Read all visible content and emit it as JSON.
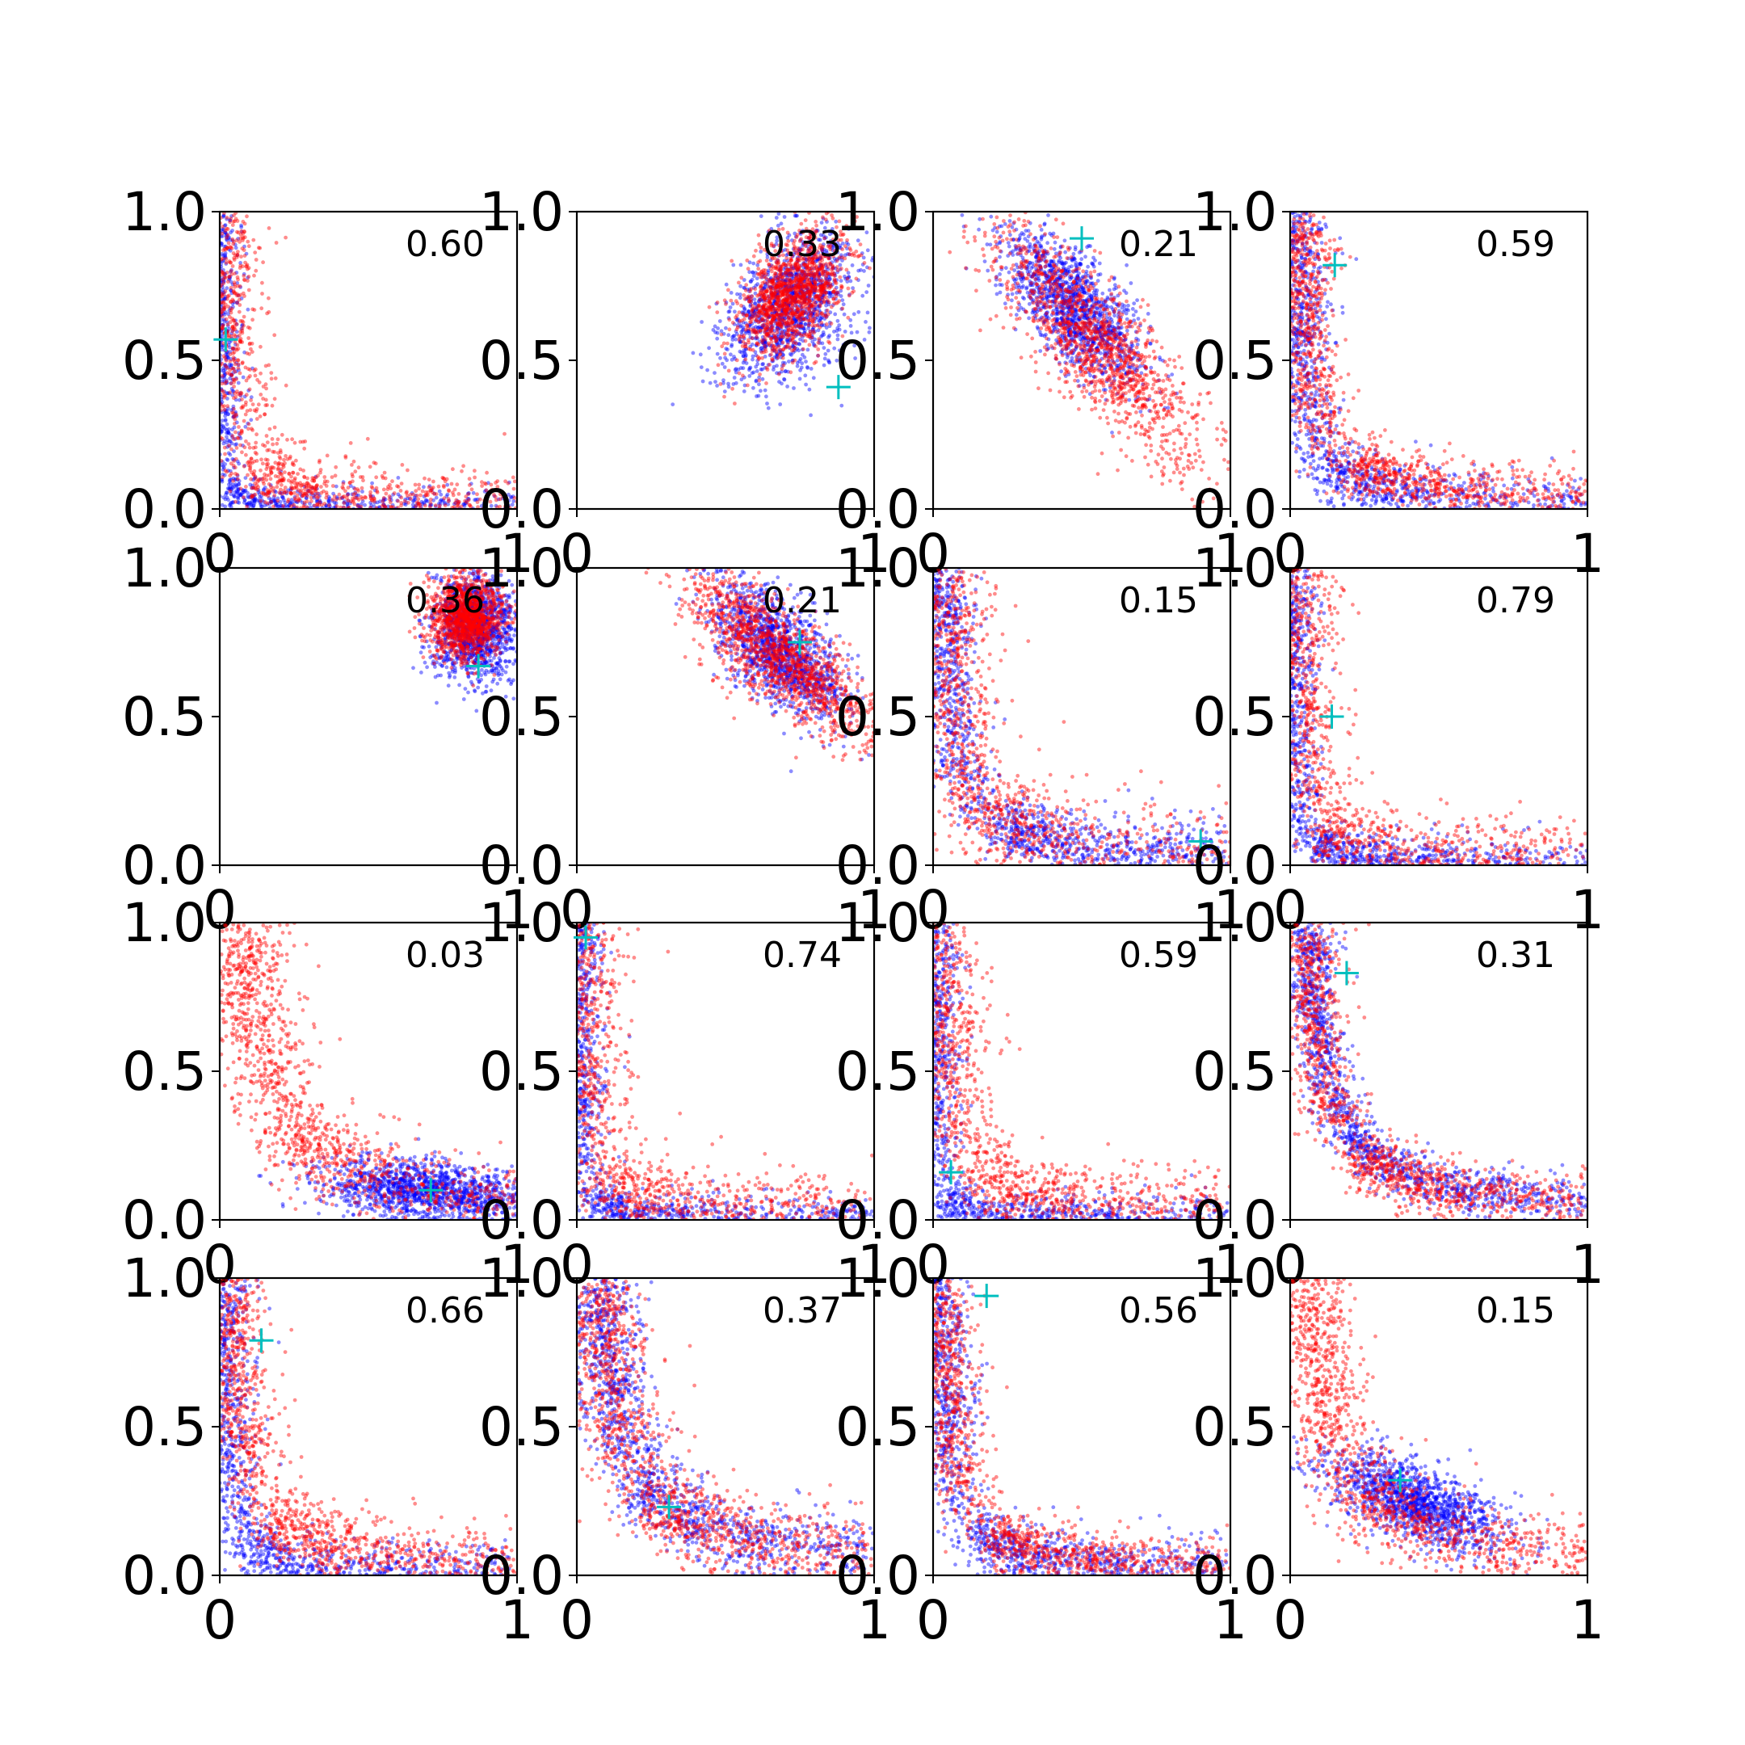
{
  "figure": {
    "rows": 4,
    "cols": 4,
    "colors": {
      "series_a": "#0000ff",
      "series_b": "#ff0000",
      "marker": "#00bfbf",
      "axis": "#000000"
    }
  },
  "chart_data": [
    {
      "type": "scatter",
      "annotation": "0.60",
      "xlim": [
        0,
        1
      ],
      "ylim": [
        0,
        1
      ],
      "x_ticks": [
        "0",
        "1"
      ],
      "y_ticks": [
        "0.0",
        "0.5",
        "1.0"
      ],
      "marker": {
        "x": 0.02,
        "y": 0.57
      },
      "blue": {
        "shape": "L",
        "knee": [
          0.05,
          0.05
        ],
        "spread": 0.035
      },
      "red": {
        "shape": "L",
        "knee": [
          0.15,
          0.12
        ],
        "spread": 0.06
      }
    },
    {
      "type": "scatter",
      "annotation": "0.33",
      "xlim": [
        0,
        1
      ],
      "ylim": [
        0,
        1
      ],
      "x_ticks": [
        "0",
        "1"
      ],
      "y_ticks": [
        "0.0",
        "0.5",
        "1.0"
      ],
      "marker": {
        "x": 0.88,
        "y": 0.41
      },
      "blue": {
        "shape": "blob",
        "center": [
          0.72,
          0.68
        ],
        "sx": 0.09,
        "sy": 0.14,
        "rot": -0.6
      },
      "red": {
        "shape": "blob",
        "center": [
          0.72,
          0.72
        ],
        "sx": 0.07,
        "sy": 0.12,
        "rot": -0.6
      }
    },
    {
      "type": "scatter",
      "annotation": "0.21",
      "xlim": [
        0,
        1
      ],
      "ylim": [
        0,
        1
      ],
      "x_ticks": [
        "0",
        "1"
      ],
      "y_ticks": [
        "0.0",
        "0.5",
        "1.0"
      ],
      "marker": {
        "x": 0.5,
        "y": 0.91
      },
      "blue": {
        "shape": "blob",
        "center": [
          0.47,
          0.68
        ],
        "sx": 0.16,
        "sy": 0.07,
        "rot": -0.85
      },
      "red": {
        "shape": "blob",
        "center": [
          0.55,
          0.55
        ],
        "sx": 0.27,
        "sy": 0.08,
        "rot": -0.85
      }
    },
    {
      "type": "scatter",
      "annotation": "0.59",
      "xlim": [
        0,
        1
      ],
      "ylim": [
        0,
        1
      ],
      "x_ticks": [
        "0",
        "1"
      ],
      "y_ticks": [
        "0.0",
        "0.5",
        "1.0"
      ],
      "marker": {
        "x": 0.15,
        "y": 0.82
      },
      "blue": {
        "shape": "L",
        "knee": [
          0.13,
          0.15
        ],
        "spread": 0.05
      },
      "red": {
        "shape": "L",
        "knee": [
          0.22,
          0.15
        ],
        "spread": 0.05
      }
    },
    {
      "type": "scatter",
      "annotation": "0.36",
      "xlim": [
        0,
        1
      ],
      "ylim": [
        0,
        1
      ],
      "x_ticks": [
        "0",
        "1"
      ],
      "y_ticks": [
        "0.0",
        "0.5",
        "1.0"
      ],
      "marker": {
        "x": 0.87,
        "y": 0.67
      },
      "blue": {
        "shape": "blob",
        "center": [
          0.86,
          0.8
        ],
        "sx": 0.07,
        "sy": 0.09,
        "rot": 0
      },
      "red": {
        "shape": "blob",
        "center": [
          0.83,
          0.83
        ],
        "sx": 0.06,
        "sy": 0.07,
        "rot": 0
      }
    },
    {
      "type": "scatter",
      "annotation": "0.21",
      "xlim": [
        0,
        1
      ],
      "ylim": [
        0,
        1
      ],
      "x_ticks": [
        "0",
        "1"
      ],
      "y_ticks": [
        "0.0",
        "0.5",
        "1.0"
      ],
      "marker": {
        "x": 0.75,
        "y": 0.75
      },
      "blue": {
        "shape": "blob",
        "center": [
          0.68,
          0.72
        ],
        "sx": 0.14,
        "sy": 0.07,
        "rot": -0.8
      },
      "red": {
        "shape": "blob",
        "center": [
          0.68,
          0.7
        ],
        "sx": 0.2,
        "sy": 0.07,
        "rot": -0.7
      }
    },
    {
      "type": "scatter",
      "annotation": "0.15",
      "xlim": [
        0,
        1
      ],
      "ylim": [
        0,
        1
      ],
      "x_ticks": [
        "0",
        "1"
      ],
      "y_ticks": [
        "0.0",
        "0.5",
        "1.0"
      ],
      "marker": {
        "x": 0.9,
        "y": 0.08
      },
      "blue": {
        "shape": "L",
        "knee": [
          0.25,
          0.13
        ],
        "spread": 0.05
      },
      "red": {
        "shape": "L",
        "knee": [
          0.15,
          0.22
        ],
        "spread": 0.08
      }
    },
    {
      "type": "scatter",
      "annotation": "0.79",
      "xlim": [
        0,
        1
      ],
      "ylim": [
        0,
        1
      ],
      "x_ticks": [
        "0",
        "1"
      ],
      "y_ticks": [
        "0.0",
        "0.5",
        "1.0"
      ],
      "marker": {
        "x": 0.14,
        "y": 0.5
      },
      "blue": {
        "shape": "L",
        "knee": [
          0.08,
          0.08
        ],
        "spread": 0.04
      },
      "red": {
        "shape": "L",
        "knee": [
          0.12,
          0.15
        ],
        "spread": 0.07
      }
    },
    {
      "type": "scatter",
      "annotation": "0.03",
      "xlim": [
        0,
        1
      ],
      "ylim": [
        0,
        1
      ],
      "x_ticks": [
        "0",
        "1"
      ],
      "y_ticks": [
        "0.0",
        "0.5",
        "1.0"
      ],
      "marker": {
        "x": 0.71,
        "y": 0.1
      },
      "blue": {
        "shape": "blob",
        "center": [
          0.7,
          0.1
        ],
        "sx": 0.18,
        "sy": 0.05,
        "rot": -0.1
      },
      "red": {
        "shape": "L",
        "knee": [
          0.25,
          0.3
        ],
        "spread": 0.07
      }
    },
    {
      "type": "scatter",
      "annotation": "0.74",
      "xlim": [
        0,
        1
      ],
      "ylim": [
        0,
        1
      ],
      "x_ticks": [
        "0",
        "1"
      ],
      "y_ticks": [
        "0.0",
        "0.5",
        "1.0"
      ],
      "marker": {
        "x": 0.03,
        "y": 0.95
      },
      "blue": {
        "shape": "L",
        "knee": [
          0.06,
          0.06
        ],
        "spread": 0.04
      },
      "red": {
        "shape": "L",
        "knee": [
          0.12,
          0.13
        ],
        "spread": 0.07
      }
    },
    {
      "type": "scatter",
      "annotation": "0.59",
      "xlim": [
        0,
        1
      ],
      "ylim": [
        0,
        1
      ],
      "x_ticks": [
        "0",
        "1"
      ],
      "y_ticks": [
        "0.0",
        "0.5",
        "1.0"
      ],
      "marker": {
        "x": 0.06,
        "y": 0.16
      },
      "blue": {
        "shape": "L",
        "knee": [
          0.06,
          0.06
        ],
        "spread": 0.04
      },
      "red": {
        "shape": "L",
        "knee": [
          0.2,
          0.13
        ],
        "spread": 0.07
      }
    },
    {
      "type": "scatter",
      "annotation": "0.31",
      "xlim": [
        0,
        1
      ],
      "ylim": [
        0,
        1
      ],
      "x_ticks": [
        "0",
        "1"
      ],
      "y_ticks": [
        "0.0",
        "0.5",
        "1.0"
      ],
      "marker": {
        "x": 0.19,
        "y": 0.83
      },
      "blue": {
        "shape": "L",
        "knee": [
          0.2,
          0.3
        ],
        "spread": 0.04
      },
      "red": {
        "shape": "L",
        "knee": [
          0.27,
          0.2
        ],
        "spread": 0.05
      }
    },
    {
      "type": "scatter",
      "annotation": "0.66",
      "xlim": [
        0,
        1
      ],
      "ylim": [
        0,
        1
      ],
      "x_ticks": [
        "0",
        "1"
      ],
      "y_ticks": [
        "0.0",
        "0.5",
        "1.0"
      ],
      "marker": {
        "x": 0.14,
        "y": 0.79
      },
      "blue": {
        "shape": "L",
        "knee": [
          0.12,
          0.08
        ],
        "spread": 0.05
      },
      "red": {
        "shape": "L",
        "knee": [
          0.2,
          0.18
        ],
        "spread": 0.06
      }
    },
    {
      "type": "scatter",
      "annotation": "0.37",
      "xlim": [
        0,
        1
      ],
      "ylim": [
        0,
        1
      ],
      "x_ticks": [
        "0",
        "1"
      ],
      "y_ticks": [
        "0.0",
        "0.5",
        "1.0"
      ],
      "marker": {
        "x": 0.31,
        "y": 0.23
      },
      "blue": {
        "shape": "L",
        "knee": [
          0.24,
          0.3
        ],
        "spread": 0.06
      },
      "red": {
        "shape": "L",
        "knee": [
          0.28,
          0.25
        ],
        "spread": 0.07
      }
    },
    {
      "type": "scatter",
      "annotation": "0.56",
      "xlim": [
        0,
        1
      ],
      "ylim": [
        0,
        1
      ],
      "x_ticks": [
        "0",
        "1"
      ],
      "y_ticks": [
        "0.0",
        "0.5",
        "1.0"
      ],
      "marker": {
        "x": 0.18,
        "y": 0.94
      },
      "blue": {
        "shape": "L",
        "knee": [
          0.18,
          0.12
        ],
        "spread": 0.05
      },
      "red": {
        "shape": "L",
        "knee": [
          0.22,
          0.13
        ],
        "spread": 0.05
      }
    },
    {
      "type": "scatter",
      "annotation": "0.15",
      "xlim": [
        0,
        1
      ],
      "ylim": [
        0,
        1
      ],
      "x_ticks": [
        "0",
        "1"
      ],
      "y_ticks": [
        "0.0",
        "0.5",
        "1.0"
      ],
      "marker": {
        "x": 0.37,
        "y": 0.32
      },
      "blue": {
        "shape": "blob",
        "center": [
          0.42,
          0.25
        ],
        "sx": 0.16,
        "sy": 0.06,
        "rot": -0.4
      },
      "red": {
        "shape": "L",
        "knee": [
          0.25,
          0.28
        ],
        "spread": 0.07
      }
    }
  ]
}
